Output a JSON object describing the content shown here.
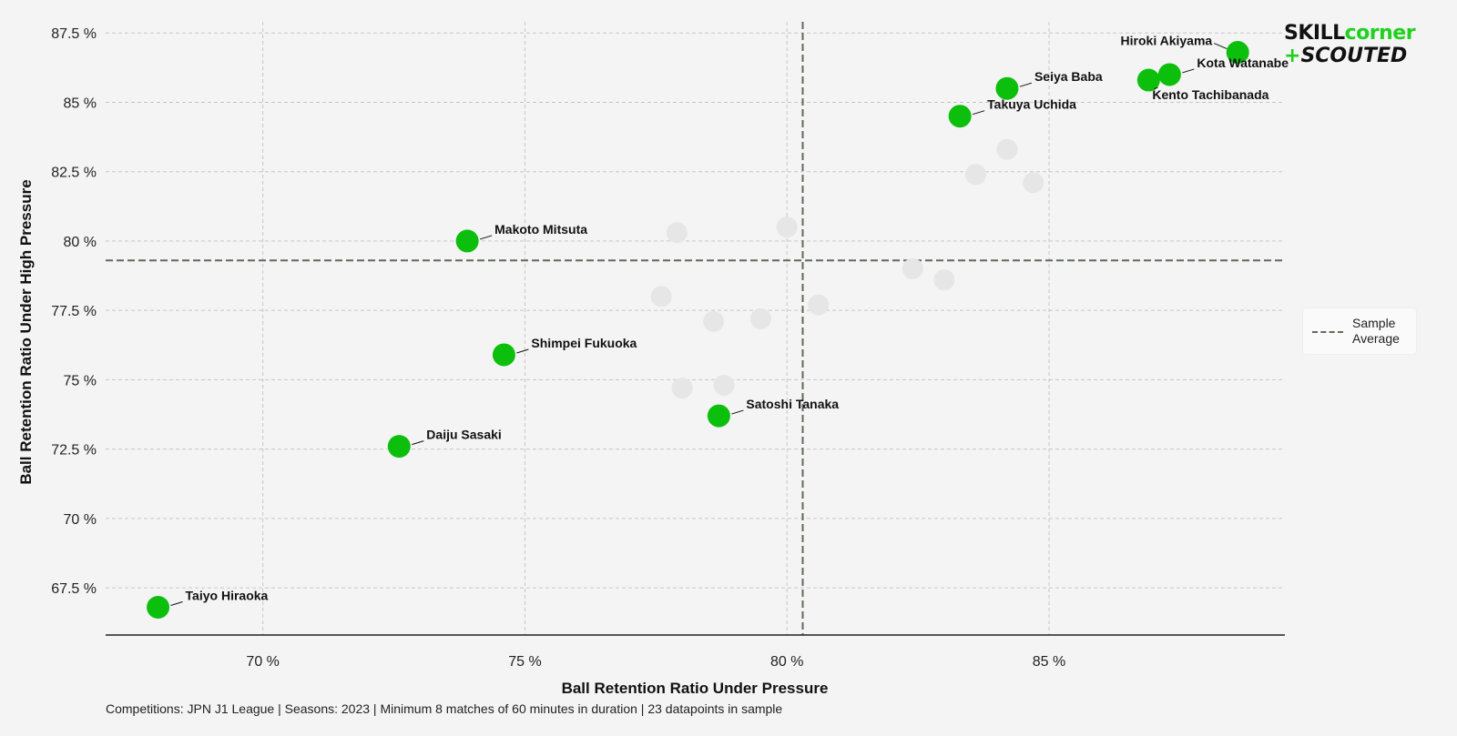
{
  "chart_data": {
    "type": "scatter",
    "xlabel": "Ball Retention Ratio Under Pressure",
    "ylabel": "Ball Retention Ratio Under High Pressure",
    "xlim": [
      67.0,
      89.5
    ],
    "ylim": [
      65.8,
      87.9
    ],
    "x_ticks": [
      70,
      75,
      80,
      85
    ],
    "y_ticks": [
      67.5,
      70,
      72.5,
      75,
      77.5,
      80,
      82.5,
      85,
      87.5
    ],
    "tick_suffix": " %",
    "grid": true,
    "highlight_color": "#0dbf0d",
    "background_point_color": "#e6e6e6",
    "average_line_color": "#5f6b5a",
    "sample_average": {
      "x": 80.3,
      "y": 79.3
    },
    "highlighted_points": [
      {
        "name": "Hiroki Akiyama",
        "x": 88.6,
        "y": 86.8
      },
      {
        "name": "Kota Watanabe",
        "x": 87.3,
        "y": 86.0
      },
      {
        "name": "Kento Tachibanada",
        "x": 86.9,
        "y": 85.8
      },
      {
        "name": "Seiya Baba",
        "x": 84.2,
        "y": 85.5
      },
      {
        "name": "Takuya Uchida",
        "x": 83.3,
        "y": 84.5
      },
      {
        "name": "Makoto Mitsuta",
        "x": 73.9,
        "y": 80.0
      },
      {
        "name": "Shimpei Fukuoka",
        "x": 74.6,
        "y": 75.9
      },
      {
        "name": "Satoshi Tanaka",
        "x": 78.7,
        "y": 73.7
      },
      {
        "name": "Daiju Sasaki",
        "x": 72.6,
        "y": 72.6
      },
      {
        "name": "Taiyo Hiraoka",
        "x": 68.0,
        "y": 66.8
      }
    ],
    "other_points": [
      {
        "x": 84.2,
        "y": 83.3
      },
      {
        "x": 83.6,
        "y": 82.4
      },
      {
        "x": 84.7,
        "y": 82.1
      },
      {
        "x": 77.9,
        "y": 80.3
      },
      {
        "x": 80.0,
        "y": 80.5
      },
      {
        "x": 82.4,
        "y": 79.0
      },
      {
        "x": 83.0,
        "y": 78.6
      },
      {
        "x": 77.6,
        "y": 78.0
      },
      {
        "x": 80.6,
        "y": 77.7
      },
      {
        "x": 78.6,
        "y": 77.1
      },
      {
        "x": 79.5,
        "y": 77.2
      },
      {
        "x": 78.0,
        "y": 74.7
      },
      {
        "x": 78.8,
        "y": 74.8
      }
    ]
  },
  "legend": {
    "label": "Sample Average"
  },
  "footnote": "Competitions: JPN J1 League | Seasons: 2023 | Minimum 8 matches of 60 minutes in duration | 23 datapoints in sample",
  "logo": {
    "line1_a": "SKILL",
    "line1_b": "corner",
    "line2_a": "+",
    "line2_b": "SCOUTED"
  }
}
